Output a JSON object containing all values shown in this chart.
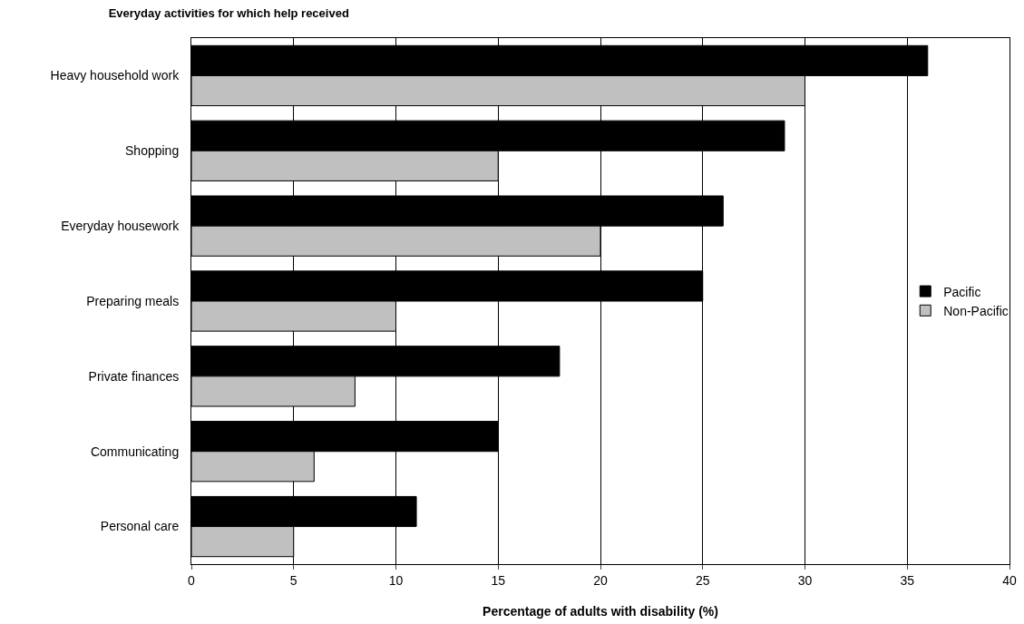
{
  "chart_data": {
    "type": "bar",
    "orientation": "horizontal",
    "title": "Everyday activities for which help received",
    "xlabel": "Percentage of adults with disability (%)",
    "categories": [
      "Heavy household work",
      "Shopping",
      "Everyday housework",
      "Preparing meals",
      "Private finances",
      "Communicating",
      "Personal care"
    ],
    "series": [
      {
        "name": "Pacific",
        "color": "#000000",
        "values": [
          36,
          29,
          26,
          25,
          18,
          15,
          11
        ]
      },
      {
        "name": "Non-Pacific",
        "color": "#c0c0c0",
        "values": [
          30,
          15,
          20,
          10,
          8,
          6,
          5
        ]
      }
    ],
    "xlim": [
      0,
      40
    ],
    "xticks": [
      0,
      5,
      10,
      15,
      20,
      25,
      30,
      35,
      40
    ],
    "grid": "x",
    "legend": "right"
  }
}
